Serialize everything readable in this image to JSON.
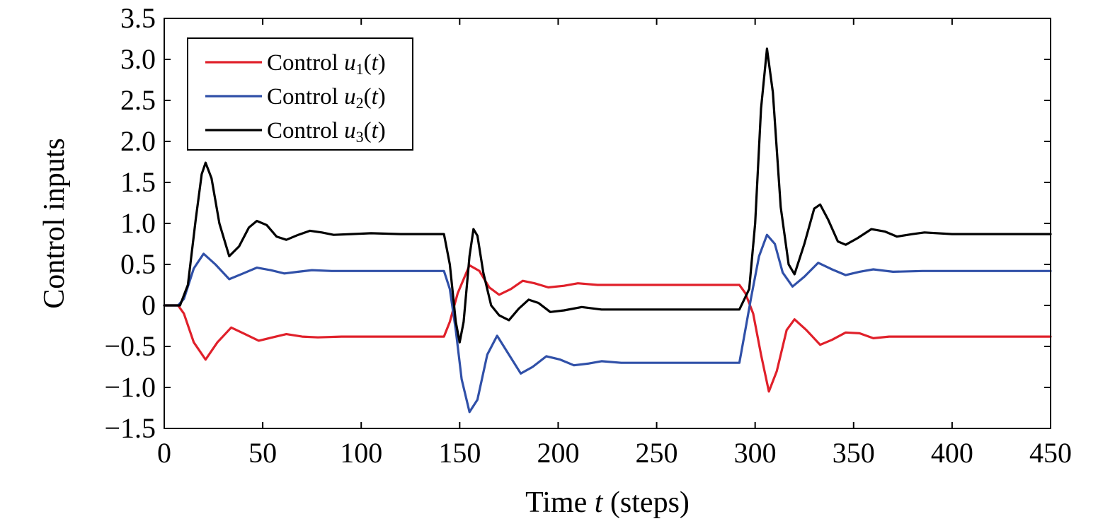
{
  "chart_data": {
    "type": "line",
    "xlabel": {
      "prefix": "Time ",
      "var": "t",
      "suffix": " (steps)"
    },
    "ylabel": "Control inputs",
    "xlim": [
      0,
      450
    ],
    "ylim": [
      -1.5,
      3.5
    ],
    "xticks": [
      0,
      50,
      100,
      150,
      200,
      250,
      300,
      350,
      400,
      450
    ],
    "xtick_labels": [
      "0",
      "50",
      "100",
      "150",
      "200",
      "250",
      "300",
      "350",
      "400",
      "450"
    ],
    "yticks": [
      -1.5,
      -1.0,
      -0.5,
      0,
      0.5,
      1.0,
      1.5,
      2.0,
      2.5,
      3.0,
      3.5
    ],
    "ytick_labels": [
      "−1.5",
      "−1.0",
      "−0.5",
      "0",
      "0.5",
      "1.0",
      "1.5",
      "2.0",
      "2.5",
      "3.0",
      "3.5"
    ],
    "grid": false,
    "legend_position": "top-left",
    "series": [
      {
        "name": "Control u1(t)",
        "legend": {
          "prefix": "Control ",
          "var": "u",
          "sub": "1",
          "suffix": "(t)"
        },
        "color": "#e0202a",
        "points": [
          [
            0,
            0
          ],
          [
            7,
            0
          ],
          [
            10,
            -0.1
          ],
          [
            15,
            -0.45
          ],
          [
            21,
            -0.66
          ],
          [
            27,
            -0.45
          ],
          [
            34,
            -0.27
          ],
          [
            41,
            -0.35
          ],
          [
            48,
            -0.43
          ],
          [
            55,
            -0.39
          ],
          [
            62,
            -0.35
          ],
          [
            70,
            -0.38
          ],
          [
            78,
            -0.39
          ],
          [
            90,
            -0.38
          ],
          [
            100,
            -0.38
          ],
          [
            120,
            -0.38
          ],
          [
            142,
            -0.38
          ],
          [
            145,
            -0.2
          ],
          [
            149,
            0.15
          ],
          [
            155,
            0.49
          ],
          [
            160,
            0.42
          ],
          [
            165,
            0.22
          ],
          [
            170,
            0.13
          ],
          [
            176,
            0.2
          ],
          [
            182,
            0.3
          ],
          [
            188,
            0.27
          ],
          [
            195,
            0.22
          ],
          [
            203,
            0.24
          ],
          [
            210,
            0.27
          ],
          [
            220,
            0.25
          ],
          [
            235,
            0.25
          ],
          [
            250,
            0.25
          ],
          [
            270,
            0.25
          ],
          [
            292,
            0.25
          ],
          [
            295,
            0.15
          ],
          [
            299,
            -0.1
          ],
          [
            303,
            -0.6
          ],
          [
            307,
            -1.05
          ],
          [
            311,
            -0.8
          ],
          [
            316,
            -0.3
          ],
          [
            320,
            -0.17
          ],
          [
            326,
            -0.3
          ],
          [
            333,
            -0.48
          ],
          [
            339,
            -0.42
          ],
          [
            346,
            -0.33
          ],
          [
            353,
            -0.34
          ],
          [
            360,
            -0.4
          ],
          [
            368,
            -0.38
          ],
          [
            380,
            -0.38
          ],
          [
            400,
            -0.38
          ],
          [
            450,
            -0.38
          ]
        ]
      },
      {
        "name": "Control u2(t)",
        "legend": {
          "prefix": "Control ",
          "var": "u",
          "sub": "2",
          "suffix": "(t)"
        },
        "color": "#3050a8",
        "points": [
          [
            0,
            0
          ],
          [
            7,
            0
          ],
          [
            10,
            0.08
          ],
          [
            15,
            0.45
          ],
          [
            20,
            0.63
          ],
          [
            26,
            0.5
          ],
          [
            33,
            0.32
          ],
          [
            40,
            0.39
          ],
          [
            47,
            0.46
          ],
          [
            54,
            0.43
          ],
          [
            61,
            0.39
          ],
          [
            68,
            0.41
          ],
          [
            75,
            0.43
          ],
          [
            85,
            0.42
          ],
          [
            100,
            0.42
          ],
          [
            120,
            0.42
          ],
          [
            142,
            0.42
          ],
          [
            145,
            0.2
          ],
          [
            148,
            -0.3
          ],
          [
            151,
            -0.9
          ],
          [
            155,
            -1.3
          ],
          [
            159,
            -1.15
          ],
          [
            164,
            -0.6
          ],
          [
            169,
            -0.37
          ],
          [
            175,
            -0.6
          ],
          [
            181,
            -0.83
          ],
          [
            187,
            -0.75
          ],
          [
            194,
            -0.62
          ],
          [
            201,
            -0.66
          ],
          [
            208,
            -0.73
          ],
          [
            215,
            -0.71
          ],
          [
            222,
            -0.68
          ],
          [
            232,
            -0.7
          ],
          [
            250,
            -0.7
          ],
          [
            270,
            -0.7
          ],
          [
            292,
            -0.7
          ],
          [
            295,
            -0.3
          ],
          [
            298,
            0.1
          ],
          [
            302,
            0.6
          ],
          [
            306,
            0.86
          ],
          [
            310,
            0.75
          ],
          [
            314,
            0.4
          ],
          [
            319,
            0.23
          ],
          [
            325,
            0.35
          ],
          [
            332,
            0.52
          ],
          [
            339,
            0.44
          ],
          [
            346,
            0.37
          ],
          [
            353,
            0.41
          ],
          [
            360,
            0.44
          ],
          [
            370,
            0.41
          ],
          [
            385,
            0.42
          ],
          [
            400,
            0.42
          ],
          [
            450,
            0.42
          ]
        ]
      },
      {
        "name": "Control u3(t)",
        "legend": {
          "prefix": "Control ",
          "var": "u",
          "sub": "3",
          "suffix": "(t)"
        },
        "color": "#000000",
        "points": [
          [
            0,
            0
          ],
          [
            8,
            0
          ],
          [
            12,
            0.25
          ],
          [
            16,
            1.05
          ],
          [
            19,
            1.6
          ],
          [
            21,
            1.74
          ],
          [
            24,
            1.55
          ],
          [
            28,
            1.0
          ],
          [
            33,
            0.6
          ],
          [
            38,
            0.72
          ],
          [
            43,
            0.95
          ],
          [
            47,
            1.03
          ],
          [
            52,
            0.98
          ],
          [
            57,
            0.84
          ],
          [
            62,
            0.8
          ],
          [
            68,
            0.86
          ],
          [
            74,
            0.91
          ],
          [
            80,
            0.89
          ],
          [
            86,
            0.86
          ],
          [
            95,
            0.87
          ],
          [
            105,
            0.88
          ],
          [
            120,
            0.87
          ],
          [
            142,
            0.87
          ],
          [
            145,
            0.5
          ],
          [
            148,
            -0.2
          ],
          [
            150,
            -0.45
          ],
          [
            152,
            -0.2
          ],
          [
            155,
            0.6
          ],
          [
            157,
            0.93
          ],
          [
            159,
            0.85
          ],
          [
            162,
            0.4
          ],
          [
            166,
            0.0
          ],
          [
            170,
            -0.12
          ],
          [
            175,
            -0.18
          ],
          [
            180,
            -0.04
          ],
          [
            185,
            0.07
          ],
          [
            190,
            0.03
          ],
          [
            196,
            -0.08
          ],
          [
            203,
            -0.06
          ],
          [
            212,
            -0.02
          ],
          [
            222,
            -0.05
          ],
          [
            240,
            -0.05
          ],
          [
            260,
            -0.05
          ],
          [
            275,
            -0.05
          ],
          [
            292,
            -0.05
          ],
          [
            294,
            0.05
          ],
          [
            297,
            0.2
          ],
          [
            300,
            1.0
          ],
          [
            303,
            2.4
          ],
          [
            306,
            3.13
          ],
          [
            309,
            2.6
          ],
          [
            313,
            1.2
          ],
          [
            317,
            0.5
          ],
          [
            320,
            0.38
          ],
          [
            325,
            0.75
          ],
          [
            330,
            1.18
          ],
          [
            333,
            1.23
          ],
          [
            337,
            1.05
          ],
          [
            342,
            0.78
          ],
          [
            346,
            0.74
          ],
          [
            352,
            0.82
          ],
          [
            359,
            0.93
          ],
          [
            366,
            0.9
          ],
          [
            372,
            0.84
          ],
          [
            380,
            0.87
          ],
          [
            386,
            0.89
          ],
          [
            400,
            0.87
          ],
          [
            420,
            0.87
          ],
          [
            450,
            0.87
          ]
        ]
      }
    ]
  }
}
